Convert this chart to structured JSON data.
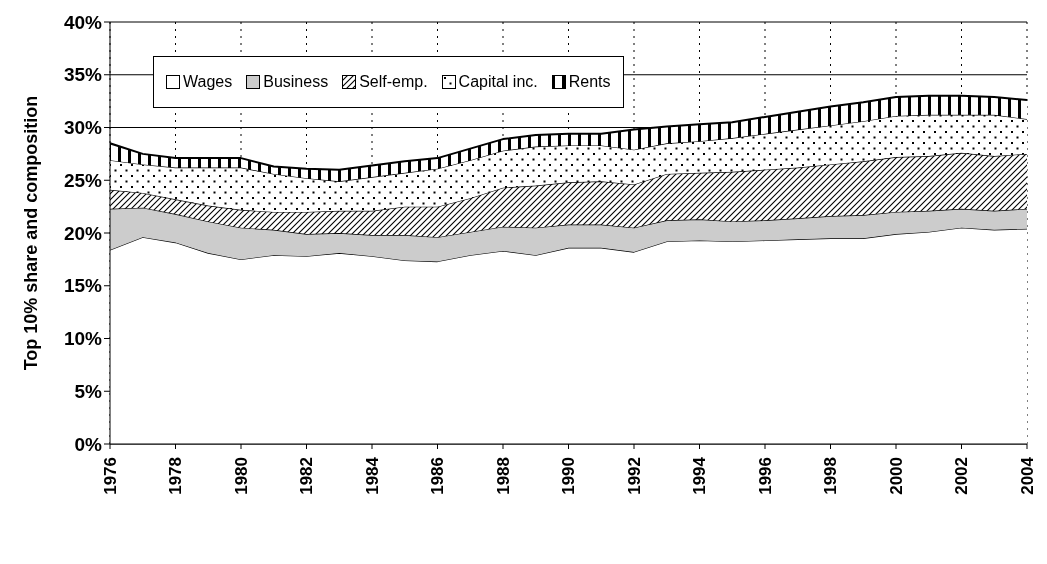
{
  "chart_data": {
    "type": "area",
    "stacked": true,
    "ylabel": "Top 10% share and composition",
    "x": [
      1976,
      1977,
      1978,
      1979,
      1980,
      1981,
      1982,
      1983,
      1984,
      1985,
      1986,
      1987,
      1988,
      1989,
      1990,
      1991,
      1992,
      1993,
      1994,
      1995,
      1996,
      1997,
      1998,
      1999,
      2000,
      2001,
      2002,
      2003,
      2004
    ],
    "xlim": [
      1976,
      2004
    ],
    "xticks": [
      1976,
      1978,
      1980,
      1982,
      1984,
      1986,
      1988,
      1990,
      1992,
      1994,
      1996,
      1998,
      2000,
      2002,
      2004
    ],
    "ylim": [
      0,
      40
    ],
    "yticks": [
      {
        "value": 0,
        "label": "0%"
      },
      {
        "value": 5,
        "label": "5%"
      },
      {
        "value": 10,
        "label": "10%"
      },
      {
        "value": 15,
        "label": "15%"
      },
      {
        "value": 20,
        "label": "20%"
      },
      {
        "value": 25,
        "label": "25%"
      },
      {
        "value": 30,
        "label": "30%"
      },
      {
        "value": 35,
        "label": "35%"
      },
      {
        "value": 40,
        "label": "40%"
      }
    ],
    "grid": true,
    "legend": "top left",
    "series": [
      {
        "name": "Wages",
        "color": "#ffffff",
        "values": [
          18.4,
          19.6,
          19.1,
          18.1,
          17.5,
          17.9,
          17.8,
          18.1,
          17.8,
          17.4,
          17.3,
          17.9,
          18.3,
          17.9,
          18.6,
          18.6,
          18.2,
          19.2,
          19.3,
          19.2,
          19.3,
          19.4,
          19.5,
          19.5,
          19.9,
          20.1,
          20.5,
          20.3,
          20.4
        ]
      },
      {
        "name": "Business",
        "color": "#cccccc",
        "values": [
          3.9,
          2.8,
          2.7,
          3.0,
          3.0,
          2.4,
          2.1,
          1.9,
          2.0,
          2.4,
          2.3,
          2.2,
          2.3,
          2.6,
          2.2,
          2.2,
          2.3,
          2.0,
          2.0,
          1.9,
          1.9,
          2.0,
          2.1,
          2.2,
          2.1,
          2.0,
          1.8,
          1.8,
          1.9
        ]
      },
      {
        "name": "Self-emp.",
        "color": "#000000",
        "values": [
          1.8,
          1.4,
          1.4,
          1.5,
          1.7,
          1.7,
          2.1,
          2.1,
          2.3,
          2.7,
          2.9,
          3.2,
          3.7,
          4.0,
          4.0,
          4.1,
          4.1,
          4.4,
          4.4,
          4.7,
          4.8,
          4.8,
          4.9,
          5.1,
          5.2,
          5.2,
          5.3,
          5.2,
          5.2
        ]
      },
      {
        "name": "Capital inc.",
        "color": "#000000",
        "values": [
          2.8,
          2.7,
          3.0,
          3.6,
          4.0,
          3.6,
          3.2,
          2.8,
          3.2,
          3.2,
          3.6,
          3.6,
          3.5,
          3.7,
          3.5,
          3.4,
          3.3,
          2.9,
          3.0,
          3.2,
          3.4,
          3.6,
          3.7,
          3.8,
          3.9,
          3.9,
          3.6,
          3.9,
          3.3
        ]
      },
      {
        "name": "Rents",
        "color": "#000000",
        "values": [
          1.6,
          1.0,
          0.9,
          0.9,
          0.9,
          0.7,
          0.9,
          1.1,
          1.1,
          1.1,
          1.0,
          1.1,
          1.1,
          1.1,
          1.1,
          1.1,
          1.9,
          1.6,
          1.6,
          1.5,
          1.6,
          1.7,
          1.8,
          1.8,
          1.8,
          1.8,
          1.8,
          1.7,
          1.8
        ]
      }
    ]
  }
}
